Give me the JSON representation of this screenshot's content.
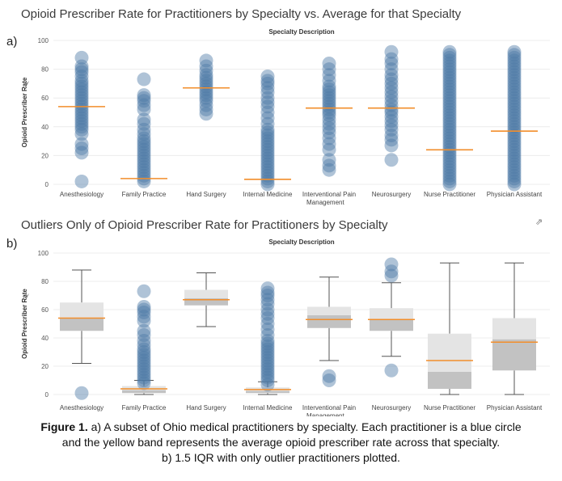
{
  "charts": [
    {
      "panel": "a)",
      "title": "Opioid Prescriber Rate for Practitioners by Specialty vs. Average for that Specialty"
    },
    {
      "panel": "b)",
      "title": "Outliers Only of Opioid Prescriber Rate for Practitioners by Specialty",
      "popout_icon": "popout-icon"
    }
  ],
  "caption": {
    "label": "Figure 1.",
    "text_line1": " a) A subset of Ohio medical practitioners by specialty. Each practitioner is a blue circle",
    "text_line2": "and the yellow band represents the average opioid prescriber rate across that specialty.",
    "text_line3": "b) 1.5 IQR with only outlier practitioners plotted."
  },
  "colors": {
    "dot": "#4e79a7",
    "avg_line": "#f28e2b",
    "box_upper": "#e4e4e4",
    "box_lower": "#c2c2c2",
    "grid": "#ececec",
    "whisker": "#555555"
  },
  "chart_data": [
    {
      "type": "scatter",
      "title": "Opioid Prescriber Rate for Practitioners by Specialty vs. Average for that Specialty",
      "xlabel": "Specialty Description",
      "ylabel": "Opioid Prescriber Rate",
      "ylim": [
        0,
        100
      ],
      "yticks": [
        0,
        20,
        40,
        60,
        80,
        100
      ],
      "grid": true,
      "categories": [
        "Anesthesiology",
        "Family Practice",
        "Hand Surgery",
        "Internal Medicine",
        "Interventional Pain Management",
        "Neurosurgery",
        "Nurse Practitioner",
        "Physician Assistant"
      ],
      "averages": [
        54,
        4,
        67,
        3.5,
        53,
        53,
        24,
        37
      ],
      "points": [
        [
          2,
          22,
          25,
          28,
          35,
          38,
          40,
          42,
          44,
          46,
          48,
          50,
          52,
          54,
          56,
          58,
          60,
          62,
          64,
          66,
          68,
          70,
          72,
          75,
          78,
          80,
          82,
          88
        ],
        [
          2,
          4,
          6,
          8,
          10,
          12,
          14,
          16,
          18,
          20,
          22,
          24,
          26,
          28,
          30,
          32,
          35,
          38,
          42,
          45,
          52,
          55,
          58,
          60,
          62,
          73
        ],
        [
          49,
          52,
          55,
          58,
          60,
          62,
          64,
          66,
          68,
          70,
          72,
          74,
          76,
          79,
          82,
          86
        ],
        [
          0,
          2,
          4,
          6,
          8,
          10,
          12,
          14,
          16,
          18,
          20,
          22,
          24,
          26,
          28,
          30,
          32,
          34,
          36,
          38,
          42,
          46,
          50,
          54,
          57,
          60,
          64,
          67,
          70,
          72,
          75
        ],
        [
          10,
          13,
          17,
          24,
          28,
          32,
          36,
          39,
          42,
          45,
          48,
          50,
          52,
          54,
          56,
          58,
          60,
          62,
          64,
          66,
          68,
          72,
          76,
          80,
          84
        ],
        [
          17,
          27,
          31,
          34,
          38,
          41,
          44,
          47,
          50,
          52,
          55,
          58,
          61,
          64,
          67,
          70,
          73,
          76,
          80,
          84,
          87,
          92
        ],
        [
          0,
          2,
          4,
          6,
          8,
          10,
          12,
          14,
          16,
          18,
          20,
          22,
          24,
          26,
          28,
          30,
          32,
          34,
          36,
          38,
          40,
          42,
          44,
          46,
          48,
          50,
          52,
          54,
          56,
          58,
          60,
          62,
          64,
          66,
          68,
          70,
          72,
          74,
          76,
          78,
          80,
          82,
          84,
          86,
          88,
          90,
          92
        ],
        [
          0,
          2,
          4,
          6,
          8,
          10,
          12,
          14,
          16,
          18,
          20,
          22,
          24,
          26,
          28,
          30,
          32,
          34,
          36,
          38,
          40,
          42,
          44,
          46,
          48,
          50,
          52,
          54,
          56,
          58,
          60,
          62,
          64,
          66,
          68,
          70,
          72,
          74,
          76,
          78,
          80,
          82,
          84,
          86,
          88,
          90,
          92
        ]
      ]
    },
    {
      "type": "box",
      "title": "Outliers Only of Opioid Prescriber Rate for Practitioners by Specialty",
      "xlabel": "Specialty Description",
      "ylabel": "Opioid Prescriber Rate",
      "ylim": [
        0,
        100
      ],
      "yticks": [
        0,
        20,
        40,
        60,
        80,
        100
      ],
      "grid": true,
      "categories": [
        "Anesthesiology",
        "Family Practice",
        "Hand Surgery",
        "Internal Medicine",
        "Interventional Pain Management",
        "Neurosurgery",
        "Nurse Practitioner",
        "Physician Assistant"
      ],
      "averages": [
        54,
        4,
        67,
        3.5,
        53,
        53,
        24,
        37
      ],
      "boxes": [
        {
          "whisker_low": 22,
          "q1": 45,
          "median": 54,
          "q3": 65,
          "whisker_high": 88,
          "outliers": [
            1
          ]
        },
        {
          "whisker_low": 0,
          "q1": 1,
          "median": 3,
          "q3": 6,
          "whisker_high": 10,
          "outliers": [
            8,
            10,
            12,
            14,
            16,
            18,
            20,
            22,
            24,
            26,
            28,
            30,
            32,
            35,
            38,
            42,
            45,
            52,
            55,
            58,
            60,
            62,
            73
          ]
        },
        {
          "whisker_low": 48,
          "q1": 63,
          "median": 68,
          "q3": 74,
          "whisker_high": 86,
          "outliers": []
        },
        {
          "whisker_low": 0,
          "q1": 1,
          "median": 2.5,
          "q3": 5,
          "whisker_high": 9,
          "outliers": [
            7,
            10,
            12,
            14,
            16,
            18,
            20,
            22,
            24,
            26,
            28,
            30,
            32,
            34,
            36,
            38,
            42,
            46,
            50,
            54,
            57,
            60,
            64,
            67,
            70,
            72,
            75
          ]
        },
        {
          "whisker_low": 24,
          "q1": 47,
          "median": 56,
          "q3": 62,
          "whisker_high": 83,
          "outliers": [
            10,
            13
          ]
        },
        {
          "whisker_low": 27,
          "q1": 45,
          "median": 53,
          "q3": 61,
          "whisker_high": 79,
          "outliers": [
            17,
            84,
            87,
            92
          ]
        },
        {
          "whisker_low": 0,
          "q1": 4,
          "median": 16,
          "q3": 43,
          "whisker_high": 93,
          "outliers": []
        },
        {
          "whisker_low": 0,
          "q1": 17,
          "median": 39,
          "q3": 54,
          "whisker_high": 93,
          "outliers": []
        }
      ]
    }
  ]
}
